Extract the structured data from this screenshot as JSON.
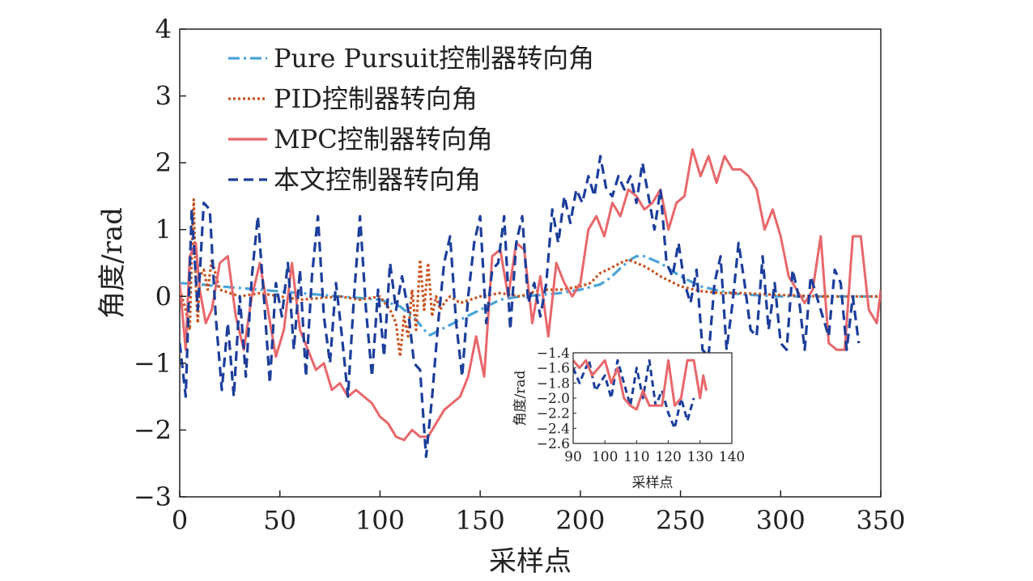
{
  "chart_data": [
    {
      "type": "line",
      "xlabel": "采样点",
      "ylabel": "角度/rad",
      "xlim": [
        0,
        350
      ],
      "ylim": [
        -3,
        4
      ],
      "xticks": [
        0,
        50,
        100,
        150,
        200,
        250,
        300,
        350
      ],
      "yticks": [
        -3,
        -2,
        -1,
        0,
        1,
        2,
        3,
        4
      ],
      "ytick_labels": [
        "−3",
        "−2",
        "−1",
        "0",
        "1",
        "2",
        "3",
        "4"
      ],
      "legend_position": "top-left",
      "grid": false,
      "series": [
        {
          "name": "Pure Pursuit控制器转向角",
          "color": "#4aa3d9",
          "style": "dashdot",
          "x": [
            0,
            10,
            20,
            40,
            60,
            80,
            100,
            110,
            118,
            122,
            125,
            130,
            140,
            150,
            160,
            170,
            180,
            190,
            200,
            210,
            215,
            220,
            225,
            228,
            232,
            236,
            240,
            245,
            250,
            260,
            270,
            280,
            300,
            320,
            350
          ],
          "y": [
            0.2,
            0.18,
            0.15,
            0.1,
            0.05,
            0.0,
            -0.05,
            -0.15,
            -0.35,
            -0.5,
            -0.58,
            -0.5,
            -0.35,
            -0.2,
            -0.05,
            0.0,
            0.02,
            0.05,
            0.1,
            0.18,
            0.28,
            0.42,
            0.55,
            0.6,
            0.6,
            0.55,
            0.5,
            0.4,
            0.3,
            0.15,
            0.08,
            0.03,
            0.0,
            0.0,
            0.0
          ]
        },
        {
          "name": "PID控制器转向角",
          "color": "#c8531e",
          "style": "dotted",
          "x": [
            0,
            3,
            5,
            6,
            7,
            8,
            9,
            10,
            12,
            14,
            16,
            20,
            30,
            40,
            60,
            80,
            90,
            100,
            105,
            108,
            110,
            112,
            114,
            116,
            118,
            120,
            122,
            124,
            126,
            128,
            130,
            132,
            135,
            140,
            150,
            160,
            170,
            180,
            190,
            200,
            205,
            210,
            215,
            220,
            224,
            228,
            232,
            236,
            240,
            250,
            260,
            270,
            280,
            300,
            320,
            340,
            350
          ],
          "y": [
            0.1,
            -0.2,
            -0.5,
            0.6,
            1.45,
            0.2,
            -0.4,
            0.3,
            0.4,
            0.1,
            0.55,
            0.1,
            0.0,
            0.05,
            -0.05,
            0.0,
            -0.05,
            0.0,
            -0.2,
            -0.4,
            -0.9,
            -0.3,
            -0.6,
            0.1,
            -0.5,
            0.55,
            -0.2,
            0.5,
            -0.3,
            0.0,
            -0.2,
            -0.1,
            0.0,
            -0.1,
            0.0,
            0.05,
            0.0,
            0.1,
            0.1,
            0.15,
            0.2,
            0.35,
            0.42,
            0.5,
            0.55,
            0.5,
            0.45,
            0.38,
            0.3,
            0.15,
            0.08,
            0.05,
            0.05,
            0.02,
            0.0,
            0.0,
            0.0
          ]
        },
        {
          "name": "MPC控制器转向角",
          "color": "#e8676b",
          "style": "solid",
          "x": [
            0,
            3,
            5,
            8,
            10,
            13,
            16,
            20,
            24,
            28,
            32,
            36,
            40,
            44,
            48,
            52,
            56,
            60,
            64,
            68,
            72,
            76,
            80,
            84,
            88,
            92,
            96,
            100,
            104,
            108,
            112,
            116,
            120,
            124,
            128,
            132,
            136,
            140,
            144,
            148,
            152,
            156,
            160,
            164,
            168,
            172,
            176,
            180,
            184,
            188,
            192,
            196,
            200,
            204,
            208,
            212,
            216,
            220,
            224,
            228,
            232,
            236,
            240,
            244,
            248,
            252,
            256,
            260,
            264,
            268,
            272,
            276,
            280,
            284,
            288,
            292,
            296,
            300,
            304,
            308,
            312,
            316,
            320,
            324,
            328,
            332,
            336,
            340,
            344,
            348,
            350
          ],
          "y": [
            0.2,
            -0.8,
            0.6,
            0.8,
            0.1,
            -0.4,
            -0.2,
            0.5,
            0.6,
            -0.3,
            -0.8,
            0.0,
            0.5,
            -0.2,
            -0.9,
            -0.5,
            0.5,
            -0.5,
            -0.8,
            -1.1,
            -1.0,
            -1.4,
            -1.3,
            -1.5,
            -1.4,
            -1.5,
            -1.6,
            -1.8,
            -1.9,
            -2.1,
            -2.15,
            -2.0,
            -2.1,
            -2.1,
            -1.9,
            -1.7,
            -1.6,
            -1.5,
            -1.2,
            -0.6,
            -1.2,
            0.6,
            0.7,
            0.0,
            0.8,
            0.7,
            -0.4,
            0.3,
            -0.6,
            0.5,
            0.2,
            0.0,
            0.2,
            1.0,
            1.2,
            0.9,
            1.4,
            1.2,
            1.6,
            1.5,
            1.3,
            1.4,
            1.6,
            1.0,
            1.4,
            1.5,
            2.2,
            1.8,
            2.1,
            1.7,
            2.1,
            1.9,
            1.9,
            1.8,
            1.6,
            1.0,
            1.3,
            0.9,
            0.3,
            0.1,
            -0.1,
            0.1,
            0.9,
            -0.7,
            -0.8,
            -0.8,
            0.9,
            0.9,
            -0.2,
            -0.4,
            0.1
          ]
        },
        {
          "name": "本文控制器转向角",
          "color": "#1c3e9b",
          "style": "dashed",
          "x": [
            0,
            3,
            6,
            9,
            12,
            15,
            18,
            21,
            24,
            27,
            30,
            33,
            36,
            39,
            42,
            45,
            48,
            51,
            54,
            57,
            60,
            63,
            66,
            69,
            72,
            75,
            78,
            81,
            84,
            87,
            90,
            93,
            96,
            99,
            102,
            105,
            108,
            111,
            114,
            117,
            120,
            123,
            126,
            129,
            132,
            135,
            138,
            141,
            144,
            147,
            150,
            153,
            156,
            159,
            162,
            165,
            168,
            171,
            174,
            177,
            180,
            183,
            186,
            189,
            192,
            195,
            198,
            201,
            204,
            207,
            210,
            213,
            216,
            219,
            222,
            225,
            228,
            231,
            234,
            237,
            240,
            243,
            246,
            249,
            252,
            255,
            258,
            261,
            264,
            267,
            270,
            273,
            276,
            279,
            282,
            285,
            288,
            291,
            294,
            297,
            300,
            303,
            306,
            309,
            312,
            315,
            318,
            321,
            324,
            327,
            330,
            333,
            336,
            339
          ],
          "y": [
            -0.7,
            -1.5,
            1.3,
            -0.2,
            1.4,
            1.3,
            -0.3,
            -1.4,
            -0.4,
            -1.5,
            0.0,
            -1.2,
            0.3,
            1.2,
            0.0,
            -1.3,
            0.2,
            -0.3,
            0.5,
            -0.8,
            0.4,
            -1.2,
            0.3,
            1.2,
            -0.3,
            -1.0,
            0.2,
            -0.6,
            -1.5,
            0.0,
            1.2,
            -0.2,
            -1.2,
            0.1,
            -0.9,
            0.5,
            -0.2,
            0.3,
            -0.2,
            -1.0,
            -1.1,
            -2.4,
            -1.5,
            -0.4,
            0.5,
            0.9,
            -0.4,
            -1.2,
            0.0,
            0.8,
            1.2,
            -0.4,
            0.4,
            0.5,
            1.2,
            -0.5,
            0.8,
            1.2,
            -0.1,
            0.2,
            -0.3,
            0.2,
            1.3,
            0.8,
            1.5,
            1.1,
            1.6,
            1.4,
            1.8,
            1.5,
            2.1,
            1.6,
            1.5,
            1.8,
            1.6,
            1.8,
            1.4,
            2.0,
            1.5,
            1.0,
            1.6,
            0.5,
            0.3,
            0.8,
            0.2,
            -0.1,
            0.4,
            -0.8,
            -0.9,
            0.2,
            0.6,
            -0.8,
            -0.1,
            0.8,
            0.2,
            -0.5,
            -0.6,
            0.6,
            -0.5,
            0.2,
            -0.7,
            -0.8,
            0.4,
            0.0,
            -0.8,
            0.3,
            0.0,
            -0.3,
            -0.6,
            0.4,
            0.2,
            -0.8,
            0.0,
            -0.7
          ]
        }
      ]
    },
    {
      "type": "line",
      "xlabel": "采样点",
      "ylabel": "角度/rad",
      "xlim": [
        90,
        140
      ],
      "ylim": [
        -2.6,
        -1.4
      ],
      "xticks": [
        90,
        100,
        110,
        120,
        130,
        140
      ],
      "yticks": [
        -1.4,
        -1.6,
        -1.8,
        -2.0,
        -2.2,
        -2.4,
        -2.6
      ],
      "ytick_labels": [
        "−1.4",
        "−1.6",
        "−1.8",
        "−2.0",
        "−2.2",
        "−2.4",
        "−2.6"
      ],
      "grid": false,
      "series": [
        {
          "color": "#1c3e9b",
          "style": "dashed",
          "x": [
            90,
            92,
            95,
            97,
            100,
            102,
            104,
            106,
            108,
            110,
            112,
            114,
            116,
            118,
            120,
            122,
            124,
            126,
            128
          ],
          "y": [
            -1.6,
            -1.8,
            -1.5,
            -1.9,
            -1.7,
            -2.0,
            -1.5,
            -1.8,
            -2.1,
            -1.6,
            -2.0,
            -1.5,
            -2.1,
            -1.9,
            -2.2,
            -2.4,
            -2.0,
            -2.3,
            -2.0
          ]
        },
        {
          "color": "#e8676b",
          "style": "solid",
          "x": [
            90,
            92,
            94,
            96,
            98,
            100,
            102,
            104,
            106,
            108,
            110,
            112,
            114,
            116,
            118,
            120,
            122,
            124,
            126,
            128,
            130,
            131,
            132
          ],
          "y": [
            -1.5,
            -1.6,
            -1.5,
            -1.7,
            -1.6,
            -1.5,
            -1.8,
            -1.6,
            -2.0,
            -2.1,
            -2.15,
            -1.9,
            -2.1,
            -2.1,
            -2.1,
            -1.5,
            -2.1,
            -2.0,
            -1.5,
            -1.5,
            -2.0,
            -1.7,
            -1.9
          ]
        }
      ]
    }
  ]
}
